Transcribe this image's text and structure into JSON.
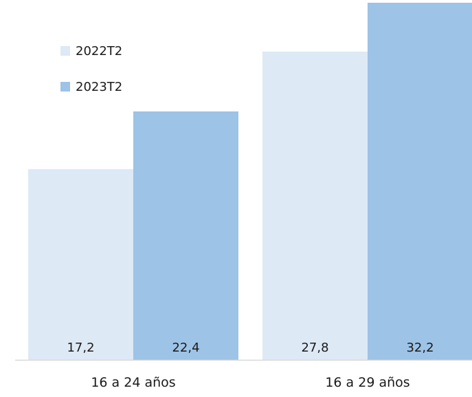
{
  "chart_data": {
    "type": "bar",
    "title": "",
    "xlabel": "",
    "ylabel": "",
    "categories": [
      "16 a 24 años",
      "16 a 29 años"
    ],
    "series": [
      {
        "name": "2022T2",
        "values": [
          17.2,
          27.8
        ],
        "labels": [
          "17,2",
          "27,8"
        ],
        "color": "#dde9f5"
      },
      {
        "name": "2023T2",
        "values": [
          22.4,
          32.2
        ],
        "labels": [
          "22,4",
          "32,2"
        ],
        "color": "#9dc3e6"
      }
    ],
    "ylim": [
      0,
      32.2
    ],
    "grid": false,
    "legend_position": "top-left",
    "axis_color": "#d9d9d9"
  }
}
